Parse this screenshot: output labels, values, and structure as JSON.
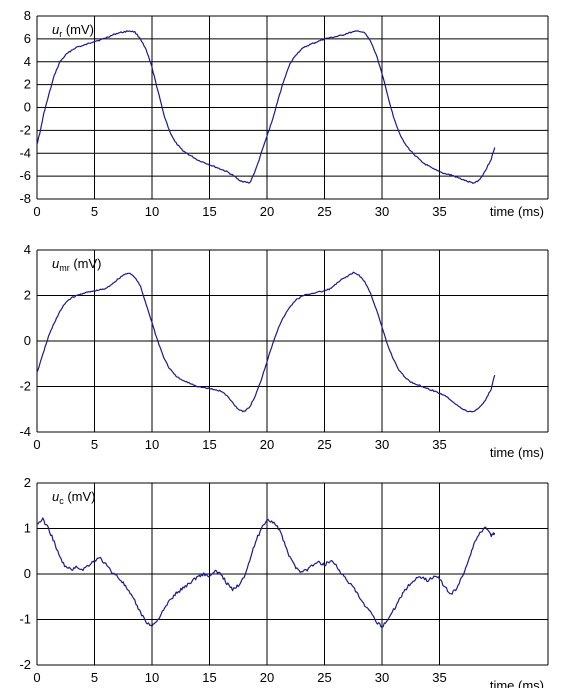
{
  "chart_data": [
    {
      "type": "line",
      "ylabel": {
        "symbol": "u",
        "subscript": "r",
        "unit": "(mV)"
      },
      "xlabel": "time (ms)",
      "xlim": [
        0,
        40
      ],
      "ylim": [
        -8,
        8
      ],
      "xticks": [
        0,
        5,
        10,
        15,
        20,
        25,
        30,
        35
      ],
      "yticks": [
        -8,
        -6,
        -4,
        -2,
        0,
        2,
        4,
        6,
        8
      ],
      "grid": true,
      "line_color": "#1a1a8c",
      "series": [
        {
          "points": [
            [
              0,
              -3.2
            ],
            [
              0.3,
              -2
            ],
            [
              0.6,
              -0.5
            ],
            [
              1,
              1
            ],
            [
              1.5,
              2.8
            ],
            [
              2,
              4.0
            ],
            [
              2.5,
              4.6
            ],
            [
              3,
              5.0
            ],
            [
              3.5,
              5.3
            ],
            [
              4,
              5.4
            ],
            [
              4.5,
              5.6
            ],
            [
              5,
              5.8
            ],
            [
              5.5,
              5.9
            ],
            [
              6,
              6.1
            ],
            [
              6.5,
              6.3
            ],
            [
              7,
              6.5
            ],
            [
              7.5,
              6.6
            ],
            [
              8,
              6.7
            ],
            [
              8.5,
              6.6
            ],
            [
              9,
              6.0
            ],
            [
              9.5,
              5.0
            ],
            [
              10,
              3.5
            ],
            [
              10.5,
              1.5
            ],
            [
              11,
              -0.5
            ],
            [
              11.5,
              -2.0
            ],
            [
              12,
              -3.0
            ],
            [
              12.5,
              -3.6
            ],
            [
              13,
              -4.0
            ],
            [
              13.5,
              -4.3
            ],
            [
              14,
              -4.6
            ],
            [
              14.5,
              -4.8
            ],
            [
              15,
              -5.0
            ],
            [
              15.5,
              -5.2
            ],
            [
              16,
              -5.4
            ],
            [
              16.5,
              -5.6
            ],
            [
              17,
              -5.9
            ],
            [
              17.5,
              -6.3
            ],
            [
              18,
              -6.5
            ],
            [
              18.5,
              -6.6
            ],
            [
              19,
              -5.5
            ],
            [
              19.5,
              -4.0
            ],
            [
              20,
              -2.5
            ],
            [
              20.5,
              -1.0
            ],
            [
              21,
              0.8
            ],
            [
              21.5,
              2.5
            ],
            [
              22,
              3.8
            ],
            [
              22.5,
              4.6
            ],
            [
              23,
              5.1
            ],
            [
              23.5,
              5.4
            ],
            [
              24,
              5.6
            ],
            [
              24.5,
              5.8
            ],
            [
              25,
              6.0
            ],
            [
              25.5,
              6.1
            ],
            [
              26,
              6.2
            ],
            [
              26.5,
              6.3
            ],
            [
              27,
              6.5
            ],
            [
              27.5,
              6.6
            ],
            [
              28,
              6.7
            ],
            [
              28.5,
              6.5
            ],
            [
              29,
              5.8
            ],
            [
              29.5,
              4.6
            ],
            [
              30,
              3.0
            ],
            [
              30.5,
              1.0
            ],
            [
              31,
              -0.8
            ],
            [
              31.5,
              -2.2
            ],
            [
              32,
              -3.2
            ],
            [
              32.5,
              -3.8
            ],
            [
              33,
              -4.3
            ],
            [
              33.5,
              -4.8
            ],
            [
              34,
              -5.1
            ],
            [
              34.5,
              -5.4
            ],
            [
              35,
              -5.6
            ],
            [
              35.5,
              -5.8
            ],
            [
              36,
              -5.9
            ],
            [
              36.5,
              -6.1
            ],
            [
              37,
              -6.3
            ],
            [
              37.5,
              -6.5
            ],
            [
              38,
              -6.6
            ],
            [
              38.5,
              -6.3
            ],
            [
              39,
              -5.5
            ],
            [
              39.5,
              -4.5
            ],
            [
              39.8,
              -3.5
            ]
          ]
        }
      ]
    },
    {
      "type": "line",
      "ylabel": {
        "symbol": "u",
        "subscript": "mr",
        "unit": "(mV)"
      },
      "xlabel": "time (ms)",
      "xlim": [
        0,
        40
      ],
      "ylim": [
        -4,
        4
      ],
      "xticks": [
        0,
        5,
        10,
        15,
        20,
        25,
        30,
        35
      ],
      "yticks": [
        -4,
        -2,
        0,
        2,
        4
      ],
      "grid": true,
      "line_color": "#1a1a8c",
      "series": [
        {
          "points": [
            [
              0,
              -1.4
            ],
            [
              0.5,
              -0.6
            ],
            [
              1,
              0.2
            ],
            [
              1.5,
              0.8
            ],
            [
              2,
              1.3
            ],
            [
              2.5,
              1.7
            ],
            [
              3,
              1.9
            ],
            [
              3.5,
              2.0
            ],
            [
              4,
              2.1
            ],
            [
              4.5,
              2.15
            ],
            [
              5,
              2.2
            ],
            [
              5.5,
              2.25
            ],
            [
              6,
              2.3
            ],
            [
              6.5,
              2.5
            ],
            [
              7,
              2.7
            ],
            [
              7.5,
              2.9
            ],
            [
              8,
              3.0
            ],
            [
              8.5,
              2.8
            ],
            [
              9,
              2.4
            ],
            [
              9.5,
              1.6
            ],
            [
              10,
              0.8
            ],
            [
              10.5,
              0.0
            ],
            [
              11,
              -0.7
            ],
            [
              11.5,
              -1.2
            ],
            [
              12,
              -1.5
            ],
            [
              12.5,
              -1.7
            ],
            [
              13,
              -1.8
            ],
            [
              13.5,
              -1.9
            ],
            [
              14,
              -2.0
            ],
            [
              14.5,
              -2.05
            ],
            [
              15,
              -2.1
            ],
            [
              15.5,
              -2.15
            ],
            [
              16,
              -2.2
            ],
            [
              16.5,
              -2.4
            ],
            [
              17,
              -2.7
            ],
            [
              17.5,
              -3.0
            ],
            [
              18,
              -3.1
            ],
            [
              18.5,
              -2.9
            ],
            [
              19,
              -2.4
            ],
            [
              19.5,
              -1.7
            ],
            [
              20,
              -0.9
            ],
            [
              20.5,
              -0.1
            ],
            [
              21,
              0.6
            ],
            [
              21.5,
              1.1
            ],
            [
              22,
              1.5
            ],
            [
              22.5,
              1.8
            ],
            [
              23,
              1.95
            ],
            [
              23.5,
              2.05
            ],
            [
              24,
              2.1
            ],
            [
              24.5,
              2.15
            ],
            [
              25,
              2.2
            ],
            [
              25.5,
              2.3
            ],
            [
              26,
              2.5
            ],
            [
              26.5,
              2.7
            ],
            [
              27,
              2.85
            ],
            [
              27.5,
              3.0
            ],
            [
              28,
              2.9
            ],
            [
              28.5,
              2.6
            ],
            [
              29,
              2.1
            ],
            [
              29.5,
              1.4
            ],
            [
              30,
              0.6
            ],
            [
              30.5,
              -0.2
            ],
            [
              31,
              -0.8
            ],
            [
              31.5,
              -1.3
            ],
            [
              32,
              -1.6
            ],
            [
              32.5,
              -1.8
            ],
            [
              33,
              -1.9
            ],
            [
              33.5,
              -2.0
            ],
            [
              34,
              -2.1
            ],
            [
              34.5,
              -2.2
            ],
            [
              35,
              -2.3
            ],
            [
              35.5,
              -2.4
            ],
            [
              36,
              -2.6
            ],
            [
              36.5,
              -2.8
            ],
            [
              37,
              -3.0
            ],
            [
              37.5,
              -3.1
            ],
            [
              38,
              -3.1
            ],
            [
              38.5,
              -2.9
            ],
            [
              39,
              -2.6
            ],
            [
              39.5,
              -2.1
            ],
            [
              39.8,
              -1.5
            ]
          ]
        }
      ]
    },
    {
      "type": "line",
      "ylabel": {
        "symbol": "u",
        "subscript": "c",
        "unit": "(mV)"
      },
      "xlabel": "time (ms)",
      "xlim": [
        0,
        40
      ],
      "ylim": [
        -2,
        2
      ],
      "xticks": [
        0,
        5,
        10,
        15,
        20,
        25,
        30,
        35
      ],
      "yticks": [
        -2,
        -1,
        0,
        1,
        2
      ],
      "grid": true,
      "line_color": "#1a1a8c",
      "series": [
        {
          "points": [
            [
              0,
              1.1
            ],
            [
              0.5,
              1.2
            ],
            [
              1,
              1.0
            ],
            [
              1.5,
              0.7
            ],
            [
              2,
              0.35
            ],
            [
              2.5,
              0.15
            ],
            [
              3,
              0.1
            ],
            [
              3.5,
              0.15
            ],
            [
              4,
              0.1
            ],
            [
              4.5,
              0.2
            ],
            [
              5,
              0.3
            ],
            [
              5.5,
              0.35
            ],
            [
              6,
              0.2
            ],
            [
              6.5,
              0.05
            ],
            [
              7,
              -0.05
            ],
            [
              7.5,
              -0.2
            ],
            [
              8,
              -0.4
            ],
            [
              8.5,
              -0.6
            ],
            [
              9,
              -0.85
            ],
            [
              9.5,
              -1.05
            ],
            [
              10,
              -1.15
            ],
            [
              10.5,
              -1.0
            ],
            [
              11,
              -0.8
            ],
            [
              11.5,
              -0.6
            ],
            [
              12,
              -0.45
            ],
            [
              12.5,
              -0.35
            ],
            [
              13,
              -0.25
            ],
            [
              13.5,
              -0.15
            ],
            [
              14,
              -0.05
            ],
            [
              14.5,
              0.0
            ],
            [
              15,
              -0.05
            ],
            [
              15.5,
              0.05
            ],
            [
              16,
              0.0
            ],
            [
              16.5,
              -0.2
            ],
            [
              17,
              -0.35
            ],
            [
              17.5,
              -0.25
            ],
            [
              18,
              -0.05
            ],
            [
              18.5,
              0.3
            ],
            [
              19,
              0.7
            ],
            [
              19.5,
              1.0
            ],
            [
              20,
              1.2
            ],
            [
              20.5,
              1.15
            ],
            [
              21,
              1.0
            ],
            [
              21.5,
              0.7
            ],
            [
              22,
              0.35
            ],
            [
              22.5,
              0.15
            ],
            [
              23,
              0.05
            ],
            [
              23.5,
              0.1
            ],
            [
              24,
              0.2
            ],
            [
              24.5,
              0.25
            ],
            [
              25,
              0.2
            ],
            [
              25.5,
              0.3
            ],
            [
              26,
              0.2
            ],
            [
              26.5,
              0.0
            ],
            [
              27,
              -0.15
            ],
            [
              27.5,
              -0.3
            ],
            [
              28,
              -0.5
            ],
            [
              28.5,
              -0.7
            ],
            [
              29,
              -0.85
            ],
            [
              29.5,
              -1.05
            ],
            [
              30,
              -1.15
            ],
            [
              30.5,
              -1.0
            ],
            [
              31,
              -0.8
            ],
            [
              31.5,
              -0.55
            ],
            [
              32,
              -0.35
            ],
            [
              32.5,
              -0.2
            ],
            [
              33,
              -0.1
            ],
            [
              33.5,
              -0.05
            ],
            [
              34,
              -0.15
            ],
            [
              34.5,
              -0.05
            ],
            [
              35,
              -0.1
            ],
            [
              35.5,
              -0.3
            ],
            [
              36,
              -0.45
            ],
            [
              36.5,
              -0.3
            ],
            [
              37,
              -0.05
            ],
            [
              37.5,
              0.3
            ],
            [
              38,
              0.65
            ],
            [
              38.5,
              0.9
            ],
            [
              39,
              1.05
            ],
            [
              39.5,
              0.85
            ],
            [
              39.8,
              0.9
            ]
          ]
        }
      ]
    }
  ]
}
